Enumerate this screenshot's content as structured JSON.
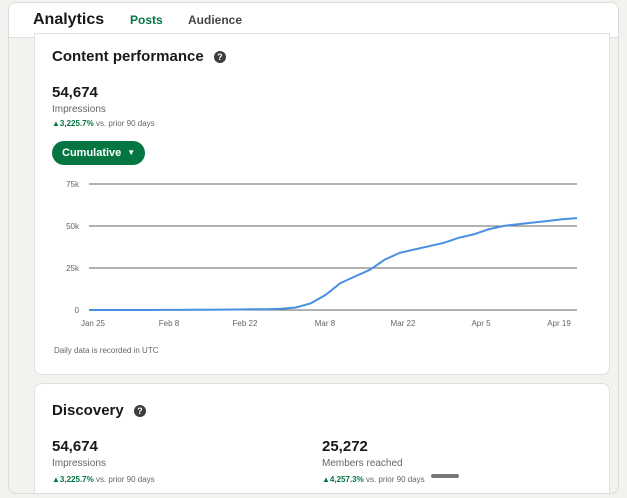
{
  "header": {
    "title": "Analytics",
    "tabs": [
      {
        "label": "Posts"
      },
      {
        "label": "Audience"
      }
    ]
  },
  "content_performance": {
    "title": "Content performance",
    "help_icon": "help-icon",
    "metric_value": "54,674",
    "metric_label": "Impressions",
    "delta": "3,225.7%",
    "delta_suffix": "vs. prior 90 days",
    "cumulative_label": "Cumulative",
    "footnote": "Daily data is recorded in UTC"
  },
  "chart_data": {
    "type": "line",
    "series": [
      {
        "values": [
          0,
          0,
          0,
          0,
          0,
          50,
          80,
          120,
          180,
          220,
          300,
          400,
          450,
          700,
          1500,
          4000,
          9000,
          16000,
          20000,
          24000,
          30000,
          34000,
          36000,
          38000,
          40000,
          43000,
          45000,
          48000,
          50000,
          51000,
          52000,
          53000,
          54000,
          54674
        ]
      }
    ],
    "x_tick_labels": [
      "Jan 25",
      "Feb 8",
      "Feb 22",
      "Mar 8",
      "Mar 22",
      "Apr 5",
      "Apr 19"
    ],
    "y_tick_labels": [
      "75k",
      "50k",
      "25k",
      "0"
    ],
    "ylim": [
      0,
      75000
    ],
    "grid": true,
    "color": "#4a90e2"
  },
  "discovery": {
    "title": "Discovery",
    "impressions_value": "54,674",
    "impressions_label": "Impressions",
    "impressions_delta": "3,225.7%",
    "impressions_delta_suffix": "vs. prior 90 days",
    "members_value": "25,272",
    "members_label": "Members reached",
    "members_delta": "4,257.3%",
    "members_delta_suffix": "vs. prior 90 days"
  }
}
